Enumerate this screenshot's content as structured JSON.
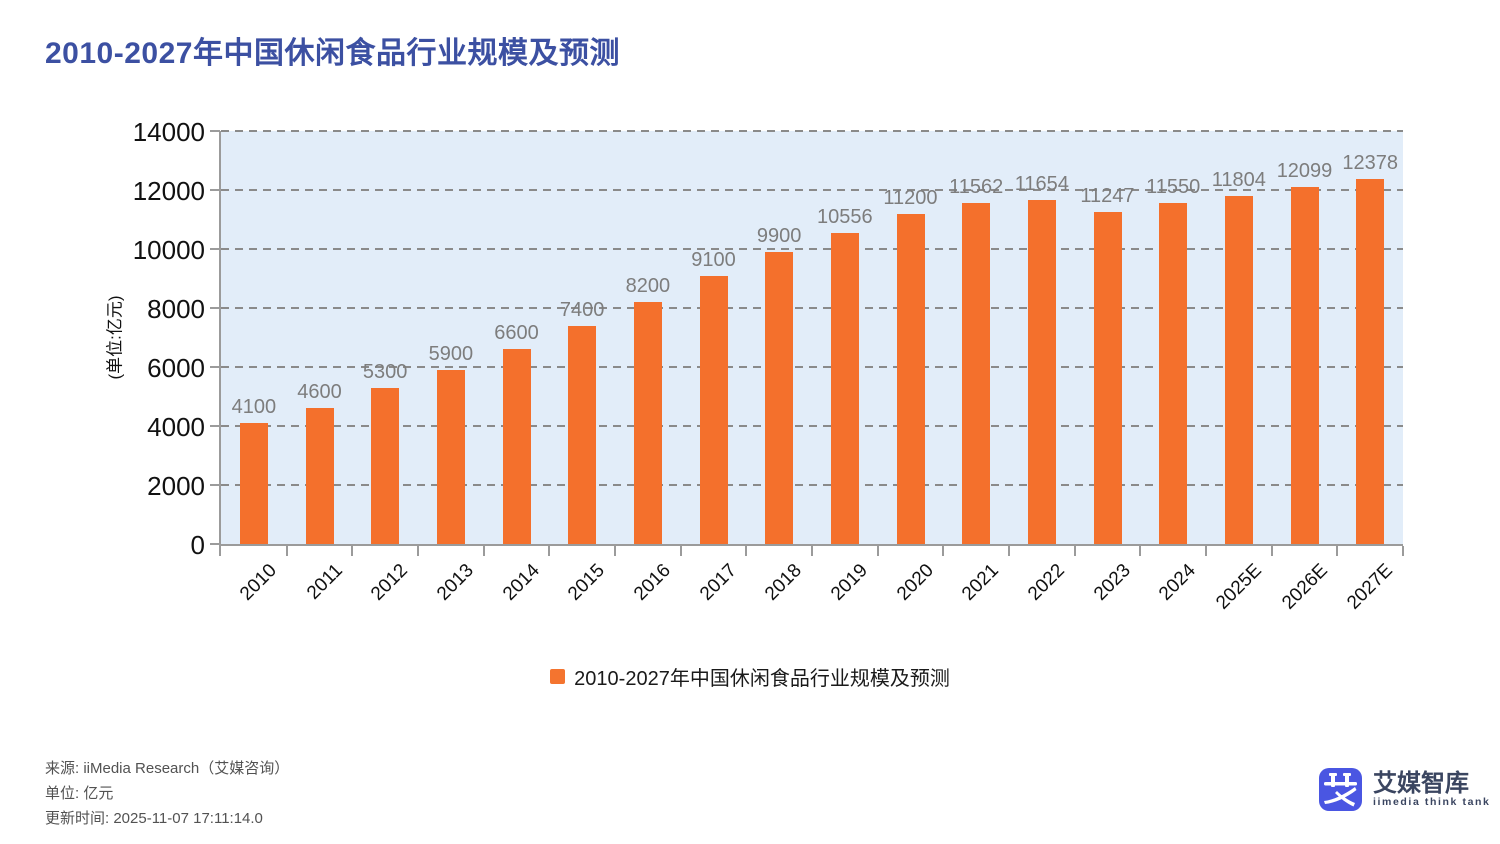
{
  "title": "2010-2027年中国休闲食品行业规模及预测",
  "chart_data": {
    "type": "bar",
    "title": "2010-2027年中国休闲食品行业规模及预测",
    "categories": [
      "2010",
      "2011",
      "2012",
      "2013",
      "2014",
      "2015",
      "2016",
      "2017",
      "2018",
      "2019",
      "2020",
      "2021",
      "2022",
      "2023",
      "2024",
      "2025E",
      "2026E",
      "2027E"
    ],
    "values": [
      4100,
      4600,
      5300,
      5900,
      6600,
      7400,
      8200,
      9100,
      9900,
      10556,
      11200,
      11562,
      11654,
      11247,
      11550,
      11804,
      12099,
      12378
    ],
    "ylabel": "(单位:亿元)",
    "ylim": [
      0,
      14000
    ],
    "yticks": [
      0,
      2000,
      4000,
      6000,
      8000,
      10000,
      12000,
      14000
    ],
    "grid": "horizontal-dashed",
    "legend_position": "bottom",
    "bar_color": "#f4702c",
    "plot_background": "#e2edf9",
    "gridline_color": "#8a8a8a",
    "value_label_color": "#7d7d7d"
  },
  "legend": {
    "label": "2010-2027年中国休闲食品行业规模及预测",
    "marker_color": "#f4742f"
  },
  "footer": {
    "source": "来源: iiMedia Research（艾媒咨询）",
    "unit": "单位: 亿元",
    "updated": "更新时间: 2025-11-07 17:11:14.0"
  },
  "logo": {
    "name": "艾媒智库",
    "subtitle": "iimedia think tank",
    "brand_color": "#4a56e2"
  },
  "colors": {
    "title": "#3c50a2",
    "axis": "#9b9b9b",
    "tick_text": "#111111"
  }
}
